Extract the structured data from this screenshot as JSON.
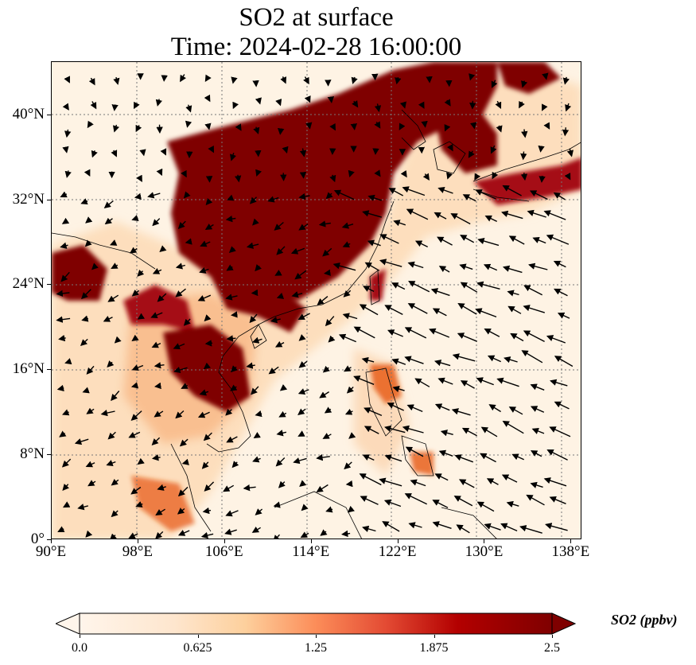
{
  "title": {
    "line1": "SO2 at surface",
    "line2": "Time: 2024-02-28 16:00:00"
  },
  "map": {
    "extent": {
      "lon": [
        90,
        139
      ],
      "lat": [
        0,
        45
      ]
    },
    "lon_ticks": [
      {
        "value": 90,
        "label": "90°E"
      },
      {
        "value": 98,
        "label": "98°E"
      },
      {
        "value": 106,
        "label": "106°E"
      },
      {
        "value": 114,
        "label": "114°E"
      },
      {
        "value": 122,
        "label": "122°E"
      },
      {
        "value": 130,
        "label": "130°E"
      },
      {
        "value": 138,
        "label": "138°E"
      }
    ],
    "lat_ticks": [
      {
        "value": 0,
        "label": "0°"
      },
      {
        "value": 8,
        "label": "8°N"
      },
      {
        "value": 16,
        "label": "16°N"
      },
      {
        "value": 24,
        "label": "24°N"
      },
      {
        "value": 32,
        "label": "32°N"
      },
      {
        "value": 40,
        "label": "40°N"
      }
    ],
    "gridlines": true,
    "colormap": [
      "#fff5eb",
      "#fdd8b0",
      "#fda863",
      "#e6550d",
      "#a50f15",
      "#7f0000"
    ]
  },
  "colorbar": {
    "label": "SO2 (ppbv)",
    "range": [
      0,
      2.5
    ],
    "extend": "both",
    "ticks": [
      {
        "value": 0,
        "label": "0.0"
      },
      {
        "value": 0.625,
        "label": "0.625"
      },
      {
        "value": 1.25,
        "label": "1.25"
      },
      {
        "value": 1.875,
        "label": "1.875"
      },
      {
        "value": 2.5,
        "label": "2.5"
      }
    ]
  }
}
